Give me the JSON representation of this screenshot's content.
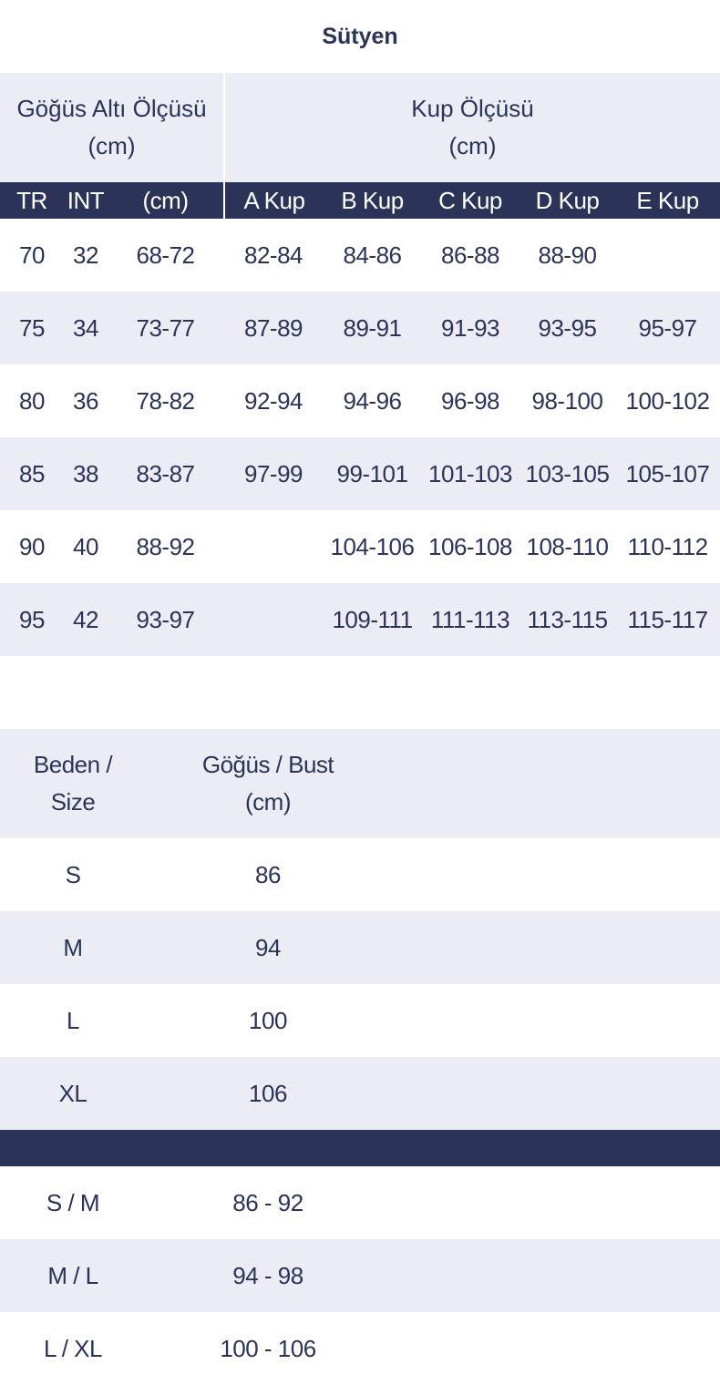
{
  "title": "Sütyen",
  "bra_table": {
    "group_headers": [
      "Göğüs Altı Ölçüsü",
      "(cm)",
      "Kup Ölçüsü",
      "(cm)"
    ],
    "columns": [
      "TR",
      "INT",
      "(cm)",
      "A Kup",
      "B Kup",
      "C Kup",
      "D Kup",
      "E Kup"
    ],
    "rows": [
      [
        "70",
        "32",
        "68-72",
        "82-84",
        "84-86",
        "86-88",
        "88-90",
        ""
      ],
      [
        "75",
        "34",
        "73-77",
        "87-89",
        "89-91",
        "91-93",
        "93-95",
        "95-97"
      ],
      [
        "80",
        "36",
        "78-82",
        "92-94",
        "94-96",
        "96-98",
        "98-100",
        "100-102"
      ],
      [
        "85",
        "38",
        "83-87",
        "97-99",
        "99-101",
        "101-103",
        "103-105",
        "105-107"
      ],
      [
        "90",
        "40",
        "88-92",
        "",
        "104-106",
        "106-108",
        "108-110",
        "110-112"
      ],
      [
        "95",
        "42",
        "93-97",
        "",
        "109-111",
        "111-113",
        "113-115",
        "115-117"
      ]
    ]
  },
  "size_table": {
    "headers": [
      "Beden /",
      "Size",
      "Göğüs / Bust",
      "(cm)"
    ],
    "rows": [
      [
        "S",
        "86"
      ],
      [
        "M",
        "94"
      ],
      [
        "L",
        "100"
      ],
      [
        "XL",
        "106"
      ]
    ],
    "rows2": [
      [
        "S / M",
        "86 - 92"
      ],
      [
        "M / L",
        "94 - 98"
      ],
      [
        "L / XL",
        "100 - 106"
      ]
    ]
  },
  "colors": {
    "navy": "#2b3359",
    "stripe": "#ebecf4"
  }
}
